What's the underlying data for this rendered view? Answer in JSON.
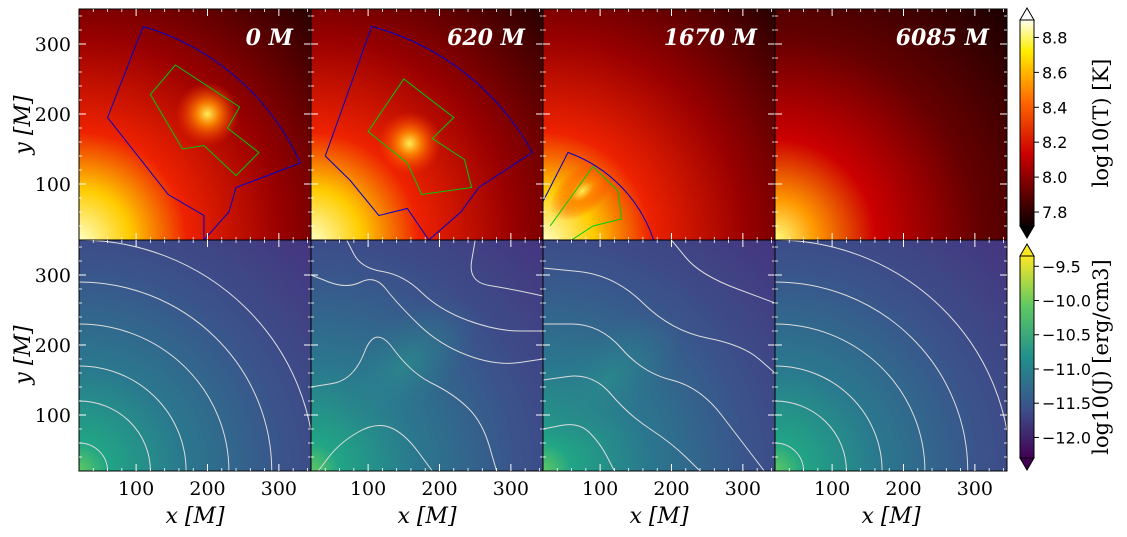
{
  "chart_data": {
    "type": "heatmap",
    "x_label": "x [M]",
    "y_label": "y [M]",
    "xlim": [
      20,
      345
    ],
    "ylim": [
      20,
      350
    ],
    "x_ticks": [
      "100",
      "200",
      "300"
    ],
    "y_ticks": [
      "100",
      "200",
      "300"
    ],
    "x_tick_values": [
      100,
      200,
      300
    ],
    "y_tick_values": [
      100,
      200,
      300
    ],
    "times": [
      "0 M",
      "620 M",
      "1670 M",
      "6085 M"
    ],
    "rows": [
      {
        "quantity": "temperature",
        "colormap": "hot",
        "colorbar_label": "log10(T) [K]",
        "colorbar_range": [
          7.72,
          8.9
        ],
        "colorbar_ticks": [
          7.8,
          8.0,
          8.2,
          8.4,
          8.6,
          8.8
        ],
        "colorbar_tick_labels": [
          "7.8",
          "8.0",
          "8.2",
          "8.4",
          "8.6",
          "8.8"
        ],
        "colorbar_extend": "both"
      },
      {
        "quantity": "radiation energy density",
        "colormap": "viridis",
        "colorbar_label": "log10(J) [erg/cm3]",
        "colorbar_range": [
          -12.3,
          -9.35
        ],
        "colorbar_ticks": [
          -9.5,
          -10.0,
          -10.5,
          -11.0,
          -11.5,
          -12.0
        ],
        "colorbar_tick_labels": [
          "−9.5",
          "−10.0",
          "−10.5",
          "−11.0",
          "−11.5",
          "−12.0"
        ],
        "colorbar_extend": "both"
      }
    ],
    "overlays": {
      "outer_boundary_color": "#0000cc",
      "inner_boundary_color": "#00cc00",
      "contour_color": "#dddddd"
    }
  }
}
